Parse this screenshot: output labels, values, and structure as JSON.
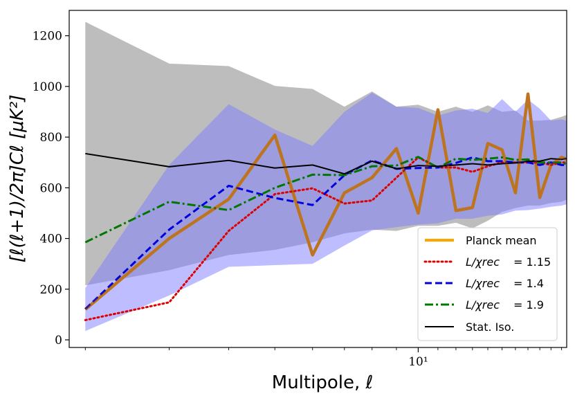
{
  "chart_data": {
    "type": "line",
    "xscale": "log",
    "xlabel": "Multipole, ℓ",
    "ylabel": "[ℓ(ℓ+1)/2π]Cℓ [μK²]",
    "xlim": [
      1.85,
      20.5
    ],
    "ylim": [
      -30,
      1300
    ],
    "x_major_ticks": [
      {
        "value": 10,
        "label": "10¹"
      }
    ],
    "y_ticks": [
      0,
      200,
      400,
      600,
      800,
      1000,
      1200
    ],
    "x": [
      2,
      3,
      4,
      5,
      6,
      7,
      8,
      9,
      10,
      11,
      12,
      13,
      14,
      15,
      16,
      17,
      18,
      19,
      20,
      21
    ],
    "bands": [
      {
        "name": "gray-band",
        "color": "#bdbdbd",
        "upper": [
          1255,
          1090,
          1080,
          1002,
          990,
          920,
          980,
          920,
          928,
          900,
          920,
          900,
          925,
          900,
          905,
          865,
          865,
          868,
          880,
          895
        ],
        "lower": [
          215,
          275,
          335,
          355,
          385,
          420,
          435,
          430,
          450,
          450,
          462,
          440,
          470,
          505,
          520,
          530,
          530,
          540,
          545,
          560
        ]
      },
      {
        "name": "blue-band",
        "color": "#7b7bff",
        "upper": [
          205,
          690,
          930,
          830,
          765,
          900,
          975,
          920,
          915,
          885,
          905,
          912,
          895,
          950,
          900,
          948,
          912,
          865,
          870,
          860
        ],
        "lower": [
          35,
          175,
          288,
          295,
          300,
          372,
          432,
          445,
          455,
          460,
          478,
          478,
          490,
          495,
          510,
          512,
          518,
          525,
          530,
          540
        ]
      }
    ],
    "series": [
      {
        "name": "Planck mean",
        "legend": "Planck mean",
        "color": "#ffa500",
        "style": "solid",
        "values": [
          120,
          400,
          555,
          808,
          335,
          580,
          640,
          755,
          500,
          908,
          510,
          522,
          775,
          750,
          580,
          970,
          562,
          690,
          720,
          705
        ]
      },
      {
        "name": "L/χrec = 1.15",
        "legend": "= 1.15",
        "color": "#dd0000",
        "style": "dotted",
        "values": [
          78,
          148,
          430,
          575,
          598,
          538,
          550,
          640,
          720,
          680,
          680,
          663,
          685,
          700,
          700,
          700,
          700,
          690,
          700,
          700
        ]
      },
      {
        "name": "L/χrec = 1.4",
        "legend": "= 1.4",
        "color": "#0000dd",
        "style": "dashed",
        "values": [
          122,
          435,
          608,
          560,
          532,
          650,
          708,
          675,
          678,
          680,
          698,
          720,
          705,
          705,
          700,
          700,
          690,
          700,
          690,
          690
        ]
      },
      {
        "name": "L/χrec = 1.9",
        "legend": "= 1.9",
        "color": "#007700",
        "style": "dashdot",
        "values": [
          385,
          545,
          512,
          600,
          652,
          650,
          685,
          688,
          722,
          680,
          715,
          710,
          715,
          720,
          710,
          712,
          700,
          700,
          700,
          685
        ]
      },
      {
        "name": "Stat. Iso.",
        "legend": "Stat. Iso.",
        "color": "#000000",
        "style": "solid",
        "values": [
          735,
          683,
          708,
          678,
          690,
          655,
          705,
          675,
          688,
          685,
          690,
          695,
          690,
          695,
          698,
          705,
          705,
          715,
          712,
          720
        ]
      }
    ],
    "legend_position": "bottom-right",
    "legend_math_label": "L/χrec"
  }
}
